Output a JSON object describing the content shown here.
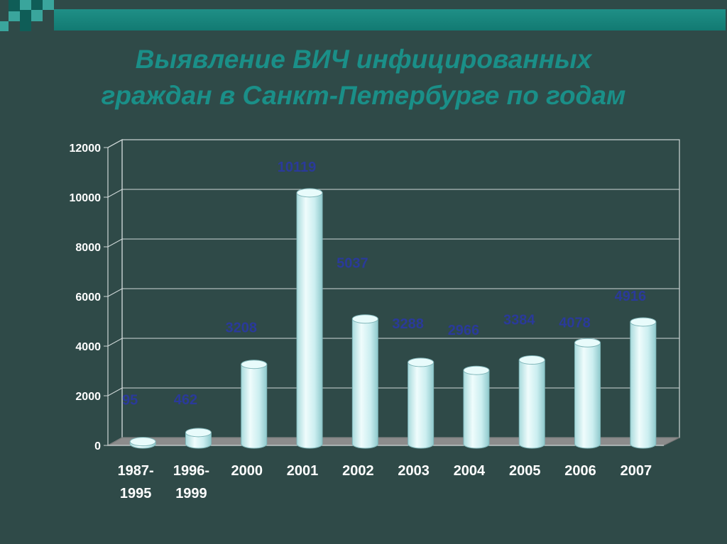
{
  "title_line1": "Выявление ВИЧ инфицированных",
  "title_line2": "граждан в Санкт-Петербурге по годам",
  "colors": {
    "background": "#2f4a48",
    "title": "#1a8f88",
    "bar": "#cfeff0",
    "value_label": "#2a3a9a",
    "axis_text": "#ffffff"
  },
  "chart_data": {
    "type": "bar",
    "title": "Выявление ВИЧ инфицированных граждан в Санкт-Петербурге по годам",
    "categories": [
      [
        "1987-",
        "1995"
      ],
      [
        "1996-",
        "1999"
      ],
      [
        "2000"
      ],
      [
        "2001"
      ],
      [
        "2002"
      ],
      [
        "2003"
      ],
      [
        "2004"
      ],
      [
        "2005"
      ],
      [
        "2006"
      ],
      [
        "2007"
      ]
    ],
    "values": [
      95,
      462,
      3208,
      10119,
      5037,
      3288,
      2966,
      3384,
      4078,
      4916
    ],
    "value_labels": [
      "95",
      "462",
      "3208",
      "10119",
      "5037",
      "3288",
      "2966",
      "3384",
      "4078",
      "4916"
    ],
    "yticks": [
      0,
      2000,
      4000,
      6000,
      8000,
      10000,
      12000
    ],
    "ylim": [
      0,
      12000
    ],
    "grid": true,
    "legend": "none",
    "style": "3d-cylinder"
  }
}
